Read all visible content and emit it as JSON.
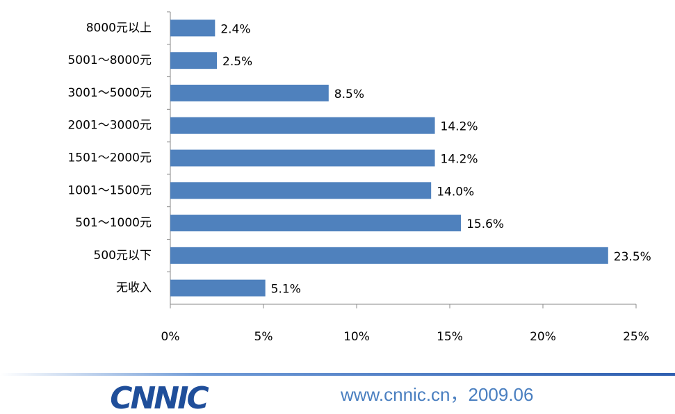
{
  "chart_data": {
    "type": "bar",
    "orientation": "horizontal",
    "categories": [
      "8000元以上",
      "5001～8000元",
      "3001～5000元",
      "2001～3000元",
      "1501～2000元",
      "1001～1500元",
      "501～1000元",
      "500元以下",
      "无收入"
    ],
    "values": [
      2.4,
      2.5,
      8.5,
      14.2,
      14.2,
      14.0,
      15.6,
      23.5,
      5.1
    ],
    "value_labels": [
      "2.4%",
      "2.5%",
      "8.5%",
      "14.2%",
      "14.2%",
      "14.0%",
      "15.6%",
      "23.5%",
      "5.1%"
    ],
    "color": "#4f81bd",
    "xlim": [
      0,
      25
    ],
    "xticks": [
      {
        "value": 0,
        "label": "0%"
      },
      {
        "value": 5,
        "label": "5%"
      },
      {
        "value": 10,
        "label": "10%"
      },
      {
        "value": 15,
        "label": "15%"
      },
      {
        "value": 20,
        "label": "20%"
      },
      {
        "value": 25,
        "label": "25%"
      }
    ]
  },
  "footer": {
    "logo": "CNNIC",
    "text": "www.cnnic.cn，2009.06"
  }
}
